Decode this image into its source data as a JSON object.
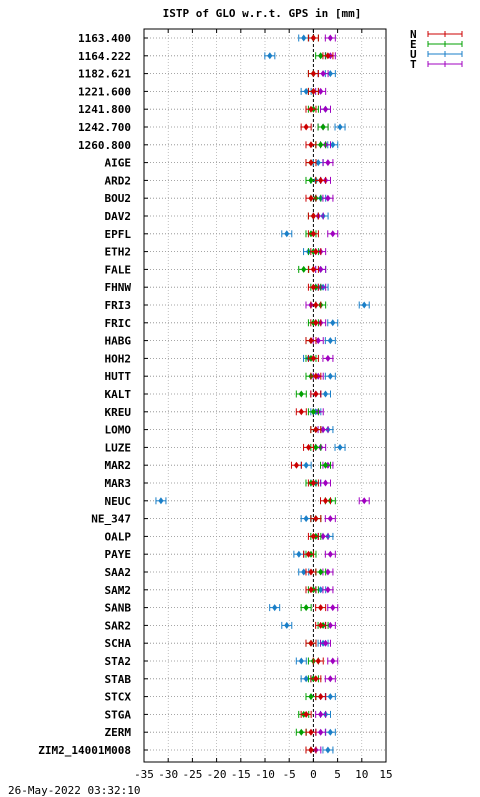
{
  "chart_data": {
    "type": "scatter",
    "title": "ISTP of GLO w.r.t. GPS in [mm]",
    "footer": "26-May-2022 03:32:10",
    "xlim": [
      -35,
      15
    ],
    "xticks": [
      -35,
      -30,
      -25,
      -20,
      -15,
      -10,
      -5,
      0,
      5,
      10,
      15
    ],
    "grid": true,
    "legend_position": "top-right outside",
    "series": [
      {
        "name": "N",
        "color": "#cc0000"
      },
      {
        "name": "E",
        "color": "#00a000"
      },
      {
        "name": "U",
        "color": "#1a7fc8"
      },
      {
        "name": "T",
        "color": "#a000c0"
      }
    ],
    "stations": [
      {
        "label": "1163.400",
        "N": 0,
        "E": 0,
        "U": -2,
        "T": 3.5
      },
      {
        "label": "1164.222",
        "N": 3,
        "E": 1.5,
        "U": -9,
        "T": 3.5
      },
      {
        "label": "1182.621",
        "N": 0,
        "E": 0,
        "U": 3.5,
        "T": 2
      },
      {
        "label": "1221.600",
        "N": 0,
        "E": 0,
        "U": -1.5,
        "T": 1.5
      },
      {
        "label": "1241.800",
        "N": -0.5,
        "E": 0,
        "U": 2.5,
        "T": 2.5
      },
      {
        "label": "1242.700",
        "N": -1.5,
        "E": 2,
        "U": 5.5,
        "T": 2
      },
      {
        "label": "1260.800",
        "N": -0.5,
        "E": 1.5,
        "U": 4,
        "T": 2.5
      },
      {
        "label": "AIGE",
        "N": -0.5,
        "E": -0.5,
        "U": 1,
        "T": 3
      },
      {
        "label": "ARD2",
        "N": 1.5,
        "E": -0.5,
        "U": 0.5,
        "T": 2.5
      },
      {
        "label": "BOU2",
        "N": -0.5,
        "E": 0.5,
        "U": 1.5,
        "T": 3
      },
      {
        "label": "DAV2",
        "N": 0,
        "E": 0,
        "U": 2,
        "T": 1
      },
      {
        "label": "EPFL",
        "N": 0,
        "E": -0.5,
        "U": -5.5,
        "T": 4
      },
      {
        "label": "ETH2",
        "N": 0.5,
        "E": 0,
        "U": -1,
        "T": 1.5
      },
      {
        "label": "FALE",
        "N": 0,
        "E": -2,
        "U": 1.5,
        "T": 1.5
      },
      {
        "label": "FHNW",
        "N": 0,
        "E": 0.5,
        "U": 2,
        "T": 1.5
      },
      {
        "label": "FRI3",
        "N": 0.5,
        "E": 1.5,
        "U": 10.5,
        "T": -0.5
      },
      {
        "label": "FRIC",
        "N": 0.5,
        "E": 0,
        "U": 4,
        "T": 1.5
      },
      {
        "label": "HABG",
        "N": -0.5,
        "E": -0.5,
        "U": 3.5,
        "T": 1
      },
      {
        "label": "HOH2",
        "N": 0,
        "E": -0.5,
        "U": -1,
        "T": 3
      },
      {
        "label": "HUTT",
        "N": 0.5,
        "E": -0.5,
        "U": 3.5,
        "T": 1
      },
      {
        "label": "KALT",
        "N": 0.5,
        "E": -2.5,
        "U": 2.5,
        "T": 0.5
      },
      {
        "label": "KREU",
        "N": -2.5,
        "E": 0,
        "U": 0.5,
        "T": 1
      },
      {
        "label": "LOMO",
        "N": 0.5,
        "E": 0.5,
        "U": 3,
        "T": 2
      },
      {
        "label": "LUZE",
        "N": -1,
        "E": 0.5,
        "U": 5.5,
        "T": 1.5
      },
      {
        "label": "MAR2",
        "N": -3.5,
        "E": 2.5,
        "U": -1.5,
        "T": 3
      },
      {
        "label": "MAR3",
        "N": 0,
        "E": -0.5,
        "U": 0.5,
        "T": 2.5
      },
      {
        "label": "NEUC",
        "N": 2.5,
        "E": 3.5,
        "U": -31.5,
        "T": 10.5
      },
      {
        "label": "NE_347",
        "N": 0.5,
        "E": 0.5,
        "U": -1.5,
        "T": 3.5
      },
      {
        "label": "OALP",
        "N": 0,
        "E": 0.5,
        "U": 3,
        "T": 2
      },
      {
        "label": "PAYE",
        "N": -1,
        "E": -0.5,
        "U": -3,
        "T": 3.5
      },
      {
        "label": "SAA2",
        "N": -0.5,
        "E": 1.5,
        "U": -2,
        "T": 3
      },
      {
        "label": "SAM2",
        "N": -0.5,
        "E": 0,
        "U": 1.5,
        "T": 3
      },
      {
        "label": "SANB",
        "N": 1.5,
        "E": -1.5,
        "U": -8,
        "T": 4
      },
      {
        "label": "SAR2",
        "N": 1.5,
        "E": 2,
        "U": -5.5,
        "T": 3.5
      },
      {
        "label": "SCHA",
        "N": -0.5,
        "E": -0.5,
        "U": 2,
        "T": 2.5
      },
      {
        "label": "STA2",
        "N": 1,
        "E": 0,
        "U": -2.5,
        "T": 4
      },
      {
        "label": "STAB",
        "N": 0.5,
        "E": 0,
        "U": -1.5,
        "T": 3.5
      },
      {
        "label": "STCX",
        "N": 1.5,
        "E": -0.5,
        "U": 3.5,
        "T": 1.5
      },
      {
        "label": "STGA",
        "N": -1.5,
        "E": -2,
        "U": 2.5,
        "T": 1.5
      },
      {
        "label": "ZERM",
        "N": -0.5,
        "E": -2.5,
        "U": 3.5,
        "T": 1.5
      },
      {
        "label": "ZIM2_14001M008",
        "N": -0.5,
        "E": -0.5,
        "U": 3,
        "T": 0.5
      }
    ]
  }
}
